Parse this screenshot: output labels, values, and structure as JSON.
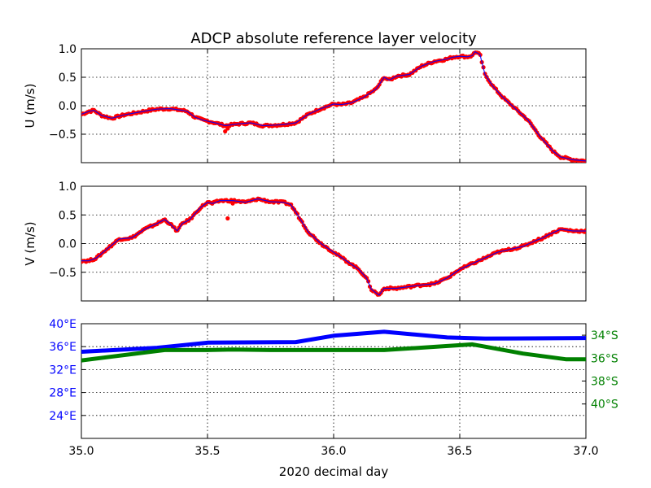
{
  "title": "ADCP absolute reference layer velocity",
  "xlabel": "2020 decimal day",
  "colors": {
    "line": "#0000ff",
    "points": "#ff0000",
    "lon": "#0000ff",
    "lat": "#008000",
    "grid": "#000000"
  },
  "chart_data": [
    {
      "type": "scatter",
      "ylabel": "U (m/s)",
      "xlim": [
        35.0,
        37.0
      ],
      "ylim": [
        -1.0,
        1.0
      ],
      "yticks": [
        1.0,
        0.5,
        0.0,
        -0.5
      ],
      "ytick_labels": [
        "1.0",
        "0.5",
        "0.0",
        "−0.5"
      ],
      "series_line": {
        "x": [
          35.0,
          35.03,
          35.05,
          35.08,
          35.12,
          35.17,
          35.22,
          35.27,
          35.3,
          35.35,
          35.4,
          35.42,
          35.45,
          35.48,
          35.5,
          35.53,
          35.57,
          35.62,
          35.67,
          35.72,
          35.77,
          35.8,
          35.85,
          35.9,
          35.95,
          36.0,
          36.03,
          36.07,
          36.12,
          36.17,
          36.2,
          36.22,
          36.25,
          36.3,
          36.35,
          36.4,
          36.45,
          36.47,
          36.5,
          36.53,
          36.55,
          36.56,
          36.58,
          36.6,
          36.63,
          36.67,
          36.72,
          36.77,
          36.82,
          36.87,
          36.9,
          36.95,
          37.0
        ],
        "y": [
          -0.15,
          -0.1,
          -0.08,
          -0.17,
          -0.22,
          -0.16,
          -0.12,
          -0.08,
          -0.06,
          -0.05,
          -0.08,
          -0.1,
          -0.2,
          -0.25,
          -0.27,
          -0.3,
          -0.35,
          -0.32,
          -0.3,
          -0.35,
          -0.34,
          -0.33,
          -0.3,
          -0.15,
          -0.05,
          0.03,
          0.02,
          0.05,
          0.15,
          0.3,
          0.5,
          0.45,
          0.52,
          0.55,
          0.7,
          0.78,
          0.82,
          0.85,
          0.87,
          0.86,
          0.88,
          0.95,
          0.9,
          0.55,
          0.35,
          0.15,
          -0.05,
          -0.25,
          -0.55,
          -0.8,
          -0.9,
          -0.95,
          -0.97
        ]
      },
      "outliers": {
        "x": [
          35.57,
          35.58
        ],
        "y": [
          -0.45,
          -0.4
        ]
      }
    },
    {
      "type": "scatter",
      "ylabel": "V (m/s)",
      "xlim": [
        35.0,
        37.0
      ],
      "ylim": [
        -1.0,
        1.0
      ],
      "yticks": [
        1.0,
        0.5,
        0.0,
        -0.5
      ],
      "ytick_labels": [
        "1.0",
        "0.5",
        "0.0",
        "−0.5"
      ],
      "series_line": {
        "x": [
          35.0,
          35.03,
          35.06,
          35.1,
          35.15,
          35.2,
          35.25,
          35.3,
          35.33,
          35.35,
          35.38,
          35.4,
          35.43,
          35.47,
          35.5,
          35.52,
          35.55,
          35.6,
          35.65,
          35.7,
          35.75,
          35.8,
          35.83,
          35.85,
          35.9,
          35.95,
          36.0,
          36.05,
          36.1,
          36.13,
          36.15,
          36.18,
          36.2,
          36.25,
          36.3,
          36.35,
          36.4,
          36.45,
          36.5,
          36.55,
          36.6,
          36.65,
          36.7,
          36.75,
          36.8,
          36.83,
          36.85,
          36.9,
          36.95,
          37.0
        ],
        "y": [
          -0.3,
          -0.3,
          -0.25,
          -0.1,
          0.08,
          0.1,
          0.25,
          0.35,
          0.42,
          0.35,
          0.22,
          0.35,
          0.42,
          0.62,
          0.72,
          0.7,
          0.75,
          0.75,
          0.72,
          0.78,
          0.73,
          0.72,
          0.68,
          0.55,
          0.2,
          0.0,
          -0.15,
          -0.3,
          -0.45,
          -0.6,
          -0.8,
          -0.9,
          -0.78,
          -0.78,
          -0.75,
          -0.72,
          -0.7,
          -0.6,
          -0.45,
          -0.35,
          -0.25,
          -0.15,
          -0.1,
          -0.05,
          0.05,
          0.1,
          0.15,
          0.25,
          0.22,
          0.22
        ]
      },
      "outliers": {
        "x": [
          35.58,
          35.6
        ],
        "y": [
          0.44,
          0.7
        ]
      }
    },
    {
      "type": "line",
      "xlim": [
        35.0,
        37.0
      ],
      "xticks": [
        35.0,
        35.5,
        36.0,
        36.5,
        37.0
      ],
      "xtick_labels": [
        "35.0",
        "35.5",
        "36.0",
        "36.5",
        "37.0"
      ],
      "left_axis": {
        "ylim": [
          20,
          40
        ],
        "yticks": [
          40,
          36,
          32,
          28,
          24
        ],
        "ytick_labels": [
          "40°E",
          "36°E",
          "32°E",
          "28°E",
          "24°E"
        ],
        "series": {
          "x": [
            35.0,
            35.3,
            35.5,
            35.85,
            36.0,
            36.2,
            36.45,
            36.6,
            37.0
          ],
          "y": [
            35.1,
            35.8,
            36.7,
            36.8,
            37.9,
            38.6,
            37.6,
            37.4,
            37.5
          ]
        }
      },
      "right_axis": {
        "ylim": [
          -43,
          -33
        ],
        "yticks": [
          -34,
          -36,
          -38,
          -40
        ],
        "ytick_labels": [
          "34°S",
          "36°S",
          "38°S",
          "40°S"
        ],
        "series": {
          "x": [
            35.0,
            35.33,
            35.5,
            35.6,
            35.75,
            35.85,
            36.0,
            36.2,
            36.55,
            36.6,
            36.75,
            36.92,
            37.0
          ],
          "y": [
            -36.2,
            -35.3,
            -35.3,
            -35.25,
            -35.3,
            -35.3,
            -35.3,
            -35.3,
            -34.8,
            -35.0,
            -35.6,
            -36.1,
            -36.1
          ]
        }
      }
    }
  ]
}
